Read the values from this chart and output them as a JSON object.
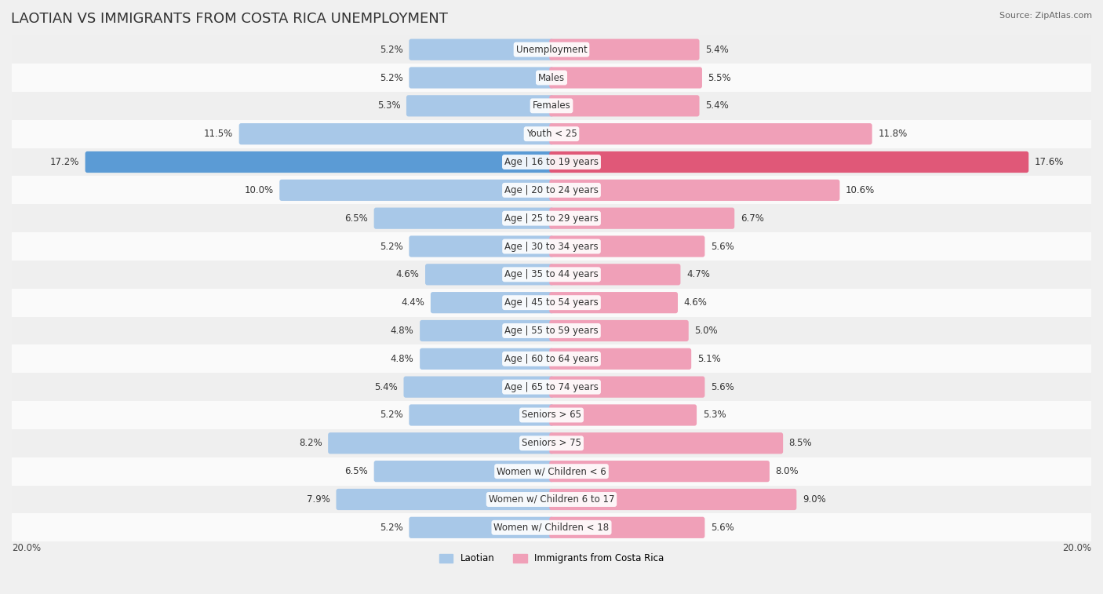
{
  "title": "LAOTIAN VS IMMIGRANTS FROM COSTA RICA UNEMPLOYMENT",
  "source": "Source: ZipAtlas.com",
  "categories": [
    "Unemployment",
    "Males",
    "Females",
    "Youth < 25",
    "Age | 16 to 19 years",
    "Age | 20 to 24 years",
    "Age | 25 to 29 years",
    "Age | 30 to 34 years",
    "Age | 35 to 44 years",
    "Age | 45 to 54 years",
    "Age | 55 to 59 years",
    "Age | 60 to 64 years",
    "Age | 65 to 74 years",
    "Seniors > 65",
    "Seniors > 75",
    "Women w/ Children < 6",
    "Women w/ Children 6 to 17",
    "Women w/ Children < 18"
  ],
  "laotian": [
    5.2,
    5.2,
    5.3,
    11.5,
    17.2,
    10.0,
    6.5,
    5.2,
    4.6,
    4.4,
    4.8,
    4.8,
    5.4,
    5.2,
    8.2,
    6.5,
    7.9,
    5.2
  ],
  "costa_rica": [
    5.4,
    5.5,
    5.4,
    11.8,
    17.6,
    10.6,
    6.7,
    5.6,
    4.7,
    4.6,
    5.0,
    5.1,
    5.6,
    5.3,
    8.5,
    8.0,
    9.0,
    5.6
  ],
  "laotian_color": "#a8c8e8",
  "costa_rica_color": "#f0a0b8",
  "highlight_laotian_color": "#5b9bd5",
  "highlight_costa_rica_color": "#e05878",
  "row_bg_even": "#efefef",
  "row_bg_odd": "#fafafa",
  "axis_limit": 20.0,
  "legend_laotian": "Laotian",
  "legend_costa_rica": "Immigrants from Costa Rica",
  "title_fontsize": 13,
  "label_fontsize": 8.5,
  "value_fontsize": 8.5
}
